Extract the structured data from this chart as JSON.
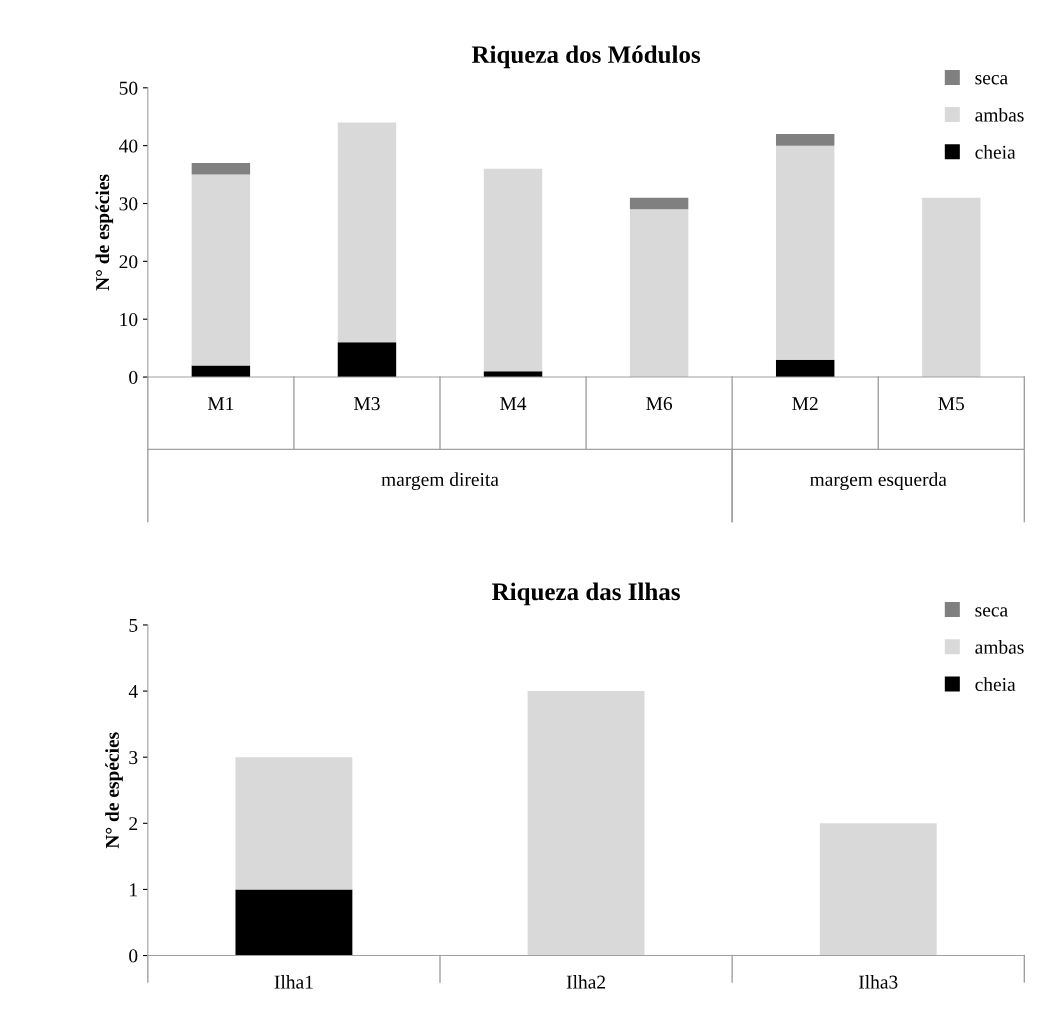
{
  "chart_data": [
    {
      "type": "bar",
      "title": "Riqueza dos Módulos",
      "ylabel": "N° de espécies",
      "stacked": true,
      "categories": [
        "M1",
        "M3",
        "M4",
        "M6",
        "M2",
        "M5"
      ],
      "series": [
        {
          "name": "cheia",
          "color": "#000000",
          "values": [
            2,
            6,
            1,
            0,
            3,
            0
          ]
        },
        {
          "name": "ambas",
          "color": "#d9d9d9",
          "values": [
            33,
            38,
            35,
            29,
            37,
            31
          ]
        },
        {
          "name": "seca",
          "color": "#808080",
          "values": [
            2,
            0,
            0,
            2,
            2,
            0
          ]
        }
      ],
      "ylim": [
        0,
        50
      ],
      "yticks": [
        0,
        10,
        20,
        30,
        40,
        50
      ],
      "grid": false,
      "legend": "top right",
      "annotations": [
        "margem direita",
        "margem esquerda"
      ]
    },
    {
      "type": "bar",
      "title": "Riqueza das Ilhas",
      "ylabel": "N° de espécies",
      "stacked": true,
      "categories": [
        "Ilha1",
        "Ilha2",
        "Ilha3"
      ],
      "series": [
        {
          "name": "cheia",
          "color": "#000000",
          "values": [
            1,
            0,
            0
          ]
        },
        {
          "name": "ambas",
          "color": "#d9d9d9",
          "values": [
            2,
            4,
            2
          ]
        },
        {
          "name": "seca",
          "color": "#808080",
          "values": [
            0,
            0,
            0
          ]
        }
      ],
      "ylim": [
        0,
        5
      ],
      "yticks": [
        0,
        1,
        2,
        3,
        4,
        5
      ],
      "grid": false,
      "legend": "top right"
    }
  ]
}
